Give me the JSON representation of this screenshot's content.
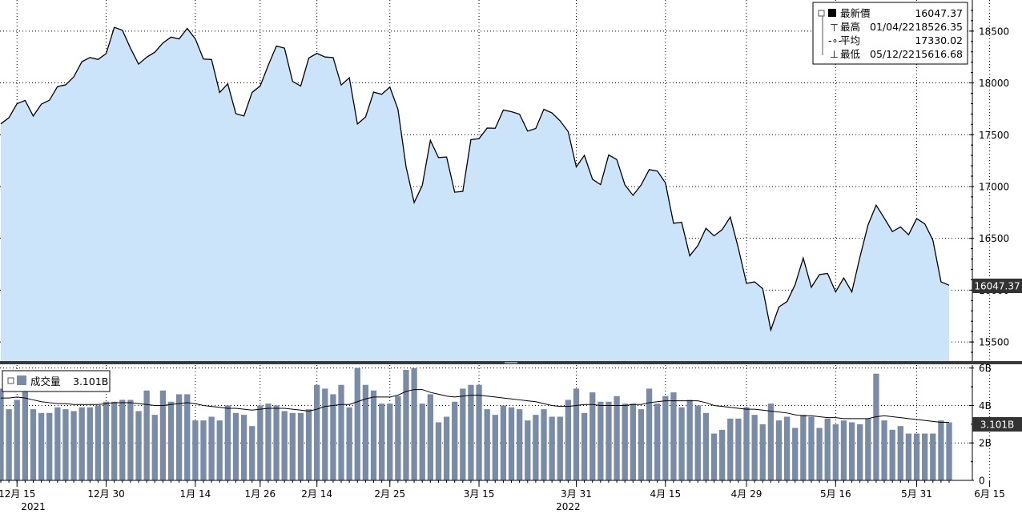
{
  "chart_data": [
    {
      "type": "area",
      "series": [
        {
          "name": "最新價",
          "values": [
            17605,
            17664,
            17799,
            17831,
            17680,
            17795,
            17833,
            17965,
            17981,
            18058,
            18204,
            18245,
            18226,
            18283,
            18536,
            18508,
            18335,
            18181,
            18248,
            18296,
            18385,
            18442,
            18424,
            18526,
            18425,
            18230,
            18226,
            17907,
            17991,
            17703,
            17681,
            17908,
            17970,
            18170,
            18356,
            18335,
            18014,
            17970,
            18240,
            18285,
            18250,
            18245,
            17979,
            18049,
            17603,
            17670,
            17911,
            17890,
            17960,
            17745,
            17190,
            16845,
            17010,
            17446,
            17279,
            17285,
            16945,
            16953,
            17453,
            17461,
            17564,
            17562,
            17739,
            17722,
            17698,
            17535,
            17560,
            17745,
            17710,
            17634,
            17530,
            17190,
            17301,
            17070,
            17018,
            17305,
            17260,
            17016,
            16915,
            17015,
            17163,
            17150,
            17035,
            16645,
            16655,
            16331,
            16430,
            16596,
            16524,
            16584,
            16705,
            16405,
            16066,
            16080,
            16015,
            15616,
            15838,
            15890,
            16052,
            16310,
            16028,
            16150,
            16162,
            15983,
            16118,
            15983,
            16320,
            16630,
            16820,
            16695,
            16565,
            16610,
            16535,
            16690,
            16640,
            16482,
            16080,
            16047
          ]
        }
      ],
      "ylim": [
        15300,
        18800
      ],
      "yticks": [
        15500,
        16000,
        16500,
        17000,
        17500,
        18000,
        18500
      ],
      "last_value_label": "16047.37",
      "legend": {
        "rows": [
          {
            "label": "最新價",
            "date": "",
            "value": "16047.37"
          },
          {
            "label": "最高",
            "date": "01/04/22",
            "value": "18526.35"
          },
          {
            "label": "平均",
            "date": "",
            "value": "17330.02"
          },
          {
            "label": "最低",
            "date": "05/12/22",
            "value": "15616.68"
          }
        ],
        "placement": "top-right"
      }
    },
    {
      "type": "bar",
      "series": [
        {
          "name": "成交量",
          "values": [
            4.9,
            3.8,
            4.3,
            4.9,
            3.8,
            3.6,
            3.6,
            3.9,
            3.8,
            3.7,
            3.9,
            3.9,
            4.0,
            4.2,
            4.2,
            4.3,
            4.3,
            3.7,
            4.8,
            3.5,
            4.8,
            4.2,
            4.6,
            4.6,
            3.2,
            3.2,
            3.4,
            3.2,
            4.0,
            3.6,
            3.5,
            2.9,
            4.0,
            4.1,
            4.0,
            3.7,
            3.6,
            3.6,
            3.8,
            5.1,
            4.9,
            4.6,
            5.1,
            3.9,
            6.0,
            5.1,
            4.8,
            4.1,
            4.1,
            4.5,
            5.9,
            6.0,
            4.1,
            4.6,
            3.1,
            3.4,
            4.2,
            4.9,
            5.1,
            5.1,
            3.8,
            3.5,
            4.0,
            3.9,
            3.8,
            3.2,
            3.5,
            3.8,
            3.4,
            3.4,
            4.3,
            4.9,
            3.6,
            4.7,
            4.2,
            4.2,
            4.5,
            4.1,
            4.1,
            3.8,
            4.9,
            4.1,
            4.5,
            4.7,
            3.9,
            4.3,
            4.0,
            3.6,
            2.5,
            2.7,
            3.3,
            3.3,
            3.9,
            3.5,
            3.0,
            4.1,
            3.2,
            3.4,
            2.8,
            3.5,
            3.4,
            2.8,
            3.3,
            3.0,
            3.2,
            3.1,
            3.0,
            3.3,
            5.7,
            3.2,
            2.7,
            2.9,
            2.5,
            2.5,
            2.5,
            2.5,
            3.2,
            3.1
          ]
        },
        {
          "name": "",
          "values": [
            4.4,
            4.4,
            4.45,
            4.4,
            4.3,
            4.2,
            4.15,
            4.1,
            4.1,
            4.05,
            4.05,
            4.05,
            4.05,
            4.1,
            4.15,
            4.15,
            4.15,
            4.1,
            4.05,
            4.0,
            4.0,
            4.05,
            4.1,
            4.15,
            4.1,
            4.0,
            3.95,
            3.9,
            3.85,
            3.85,
            3.8,
            3.75,
            3.8,
            3.85,
            3.85,
            3.85,
            3.8,
            3.75,
            3.7,
            3.8,
            3.95,
            4.0,
            4.05,
            4.05,
            4.2,
            4.35,
            4.45,
            4.45,
            4.45,
            4.55,
            4.75,
            4.85,
            4.85,
            4.7,
            4.6,
            4.5,
            4.45,
            4.5,
            4.55,
            4.55,
            4.5,
            4.45,
            4.4,
            4.35,
            4.3,
            4.25,
            4.2,
            4.1,
            4.0,
            3.95,
            3.95,
            4.0,
            4.05,
            4.05,
            4.0,
            4.0,
            4.0,
            4.0,
            4.05,
            4.05,
            4.15,
            4.2,
            4.25,
            4.25,
            4.25,
            4.25,
            4.25,
            4.15,
            4.0,
            3.95,
            3.9,
            3.85,
            3.8,
            3.8,
            3.75,
            3.7,
            3.65,
            3.6,
            3.5,
            3.45,
            3.45,
            3.4,
            3.35,
            3.35,
            3.3,
            3.3,
            3.3,
            3.3,
            3.4,
            3.45,
            3.4,
            3.35,
            3.3,
            3.25,
            3.2,
            3.15,
            3.1,
            3.1
          ]
        }
      ],
      "ylim": [
        0,
        6.2
      ],
      "yticks": [
        "0",
        "2B",
        "4B",
        "6B"
      ],
      "last_value_label": "3.101B",
      "legend": {
        "label": "成交量",
        "value": "3.101B",
        "placement": "top-left"
      }
    }
  ],
  "x_axis": {
    "labels": [
      "12月 15",
      "12月 30",
      "1月 14",
      "1月 26",
      "2月 14",
      "2月 25",
      "3月 15",
      "3月 31",
      "4月 15",
      "4月 29",
      "5月 16",
      "5月 31",
      "6月 15"
    ],
    "label_index": [
      2,
      13,
      24,
      32,
      39,
      48,
      59,
      71,
      82,
      92,
      103,
      113,
      122
    ],
    "years": [
      "2021",
      "2022"
    ],
    "year_index": [
      4,
      70
    ]
  },
  "colors": {
    "area_fill": "#cce4fa",
    "line": "#000000",
    "bar": "#7a8ba8",
    "avg_line": "#000000",
    "grid": "#000000",
    "badge": "#333333"
  }
}
